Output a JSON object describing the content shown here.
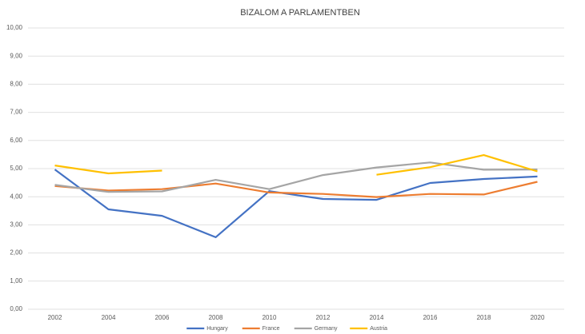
{
  "chart_data": {
    "type": "line",
    "title": "BIZALOM A PARLAMENTBEN",
    "categories": [
      "2002",
      "2004",
      "2006",
      "2008",
      "2010",
      "2012",
      "2014",
      "2016",
      "2018",
      "2020"
    ],
    "series": [
      {
        "name": "Hungary",
        "color": "#4472c4",
        "values": [
          4.97,
          3.55,
          3.32,
          2.56,
          4.2,
          3.92,
          3.89,
          4.49,
          4.63,
          4.72
        ]
      },
      {
        "name": "France",
        "color": "#ed7d31",
        "values": [
          4.38,
          4.22,
          4.27,
          4.47,
          4.15,
          4.1,
          3.99,
          4.1,
          4.08,
          4.53
        ]
      },
      {
        "name": "Germany",
        "color": "#a5a5a5",
        "values": [
          4.42,
          4.17,
          4.19,
          4.6,
          4.27,
          4.77,
          5.04,
          5.22,
          4.96,
          4.97
        ]
      },
      {
        "name": "Austria",
        "color": "#ffc000",
        "values": [
          5.11,
          4.83,
          4.93,
          null,
          null,
          null,
          4.78,
          5.05,
          5.48,
          4.9
        ]
      }
    ],
    "ylim": [
      0,
      10
    ],
    "yticks": [
      {
        "value": 0,
        "label": "0,00"
      },
      {
        "value": 1,
        "label": "1,00"
      },
      {
        "value": 2,
        "label": "2,00"
      },
      {
        "value": 3,
        "label": "3,00"
      },
      {
        "value": 4,
        "label": "4,00"
      },
      {
        "value": 5,
        "label": "5,00"
      },
      {
        "value": 6,
        "label": "6,00"
      },
      {
        "value": 7,
        "label": "7,00"
      },
      {
        "value": 8,
        "label": "8,00"
      },
      {
        "value": 9,
        "label": "9,00"
      },
      {
        "value": 10,
        "label": "10,00"
      }
    ],
    "grid": true,
    "legend": "bottom"
  }
}
